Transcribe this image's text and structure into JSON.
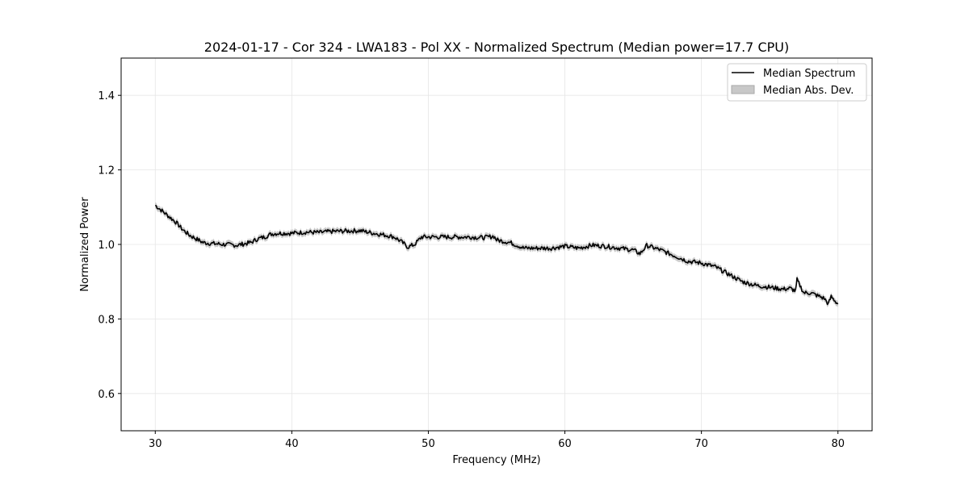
{
  "chart_data": {
    "type": "line",
    "title": "2024-01-17 - Cor 324 - LWA183 - Pol XX - Normalized Spectrum (Median power=17.7 CPU)",
    "xlabel": "Frequency (MHz)",
    "ylabel": "Normalized Power",
    "xlim": [
      27.5,
      82.5
    ],
    "ylim": [
      0.5,
      1.5
    ],
    "xticks": [
      30,
      40,
      50,
      60,
      70,
      80
    ],
    "yticks": [
      0.6,
      0.8,
      1.0,
      1.2,
      1.4
    ],
    "xtick_labels": [
      "30",
      "40",
      "50",
      "60",
      "70",
      "80"
    ],
    "ytick_labels": [
      "0.6",
      "0.8",
      "1.0",
      "1.2",
      "1.4"
    ],
    "grid": true,
    "legend_position": "top-right",
    "colors": {
      "line": "#000000",
      "band": "#a0a0a0",
      "grid": "#e6e6e6"
    },
    "series": [
      {
        "name": "Median Spectrum",
        "kind": "line",
        "x": [
          30,
          30.5,
          31,
          31.5,
          32,
          32.5,
          33,
          33.5,
          34,
          35,
          36,
          37,
          37.5,
          38,
          38.5,
          39,
          40,
          41,
          42,
          43,
          44,
          45,
          46,
          47,
          47.5,
          48,
          48.5,
          49,
          49.5,
          50,
          51,
          52,
          53,
          54,
          54.8,
          55,
          56,
          57,
          58,
          59,
          60,
          61,
          62,
          63,
          64,
          65,
          65.5,
          66,
          67,
          68,
          69,
          70,
          71,
          72,
          72.5,
          73,
          74,
          75,
          76,
          76.5,
          76.9,
          77,
          77.5,
          78,
          79,
          79.3,
          79.5,
          80
        ],
        "y": [
          1.105,
          1.09,
          1.075,
          1.06,
          1.04,
          1.025,
          1.015,
          1.005,
          1.003,
          1.0,
          0.998,
          1.005,
          1.015,
          1.02,
          1.028,
          1.03,
          1.03,
          1.033,
          1.032,
          1.035,
          1.036,
          1.037,
          1.03,
          1.024,
          1.02,
          1.008,
          0.993,
          1.0,
          1.02,
          1.02,
          1.02,
          1.02,
          1.02,
          1.018,
          1.022,
          1.012,
          1.005,
          0.99,
          0.99,
          0.99,
          0.995,
          0.99,
          0.998,
          0.995,
          0.99,
          0.985,
          0.975,
          0.997,
          0.985,
          0.97,
          0.955,
          0.95,
          0.94,
          0.92,
          0.91,
          0.9,
          0.89,
          0.885,
          0.88,
          0.882,
          0.875,
          0.905,
          0.87,
          0.87,
          0.855,
          0.84,
          0.86,
          0.84
        ]
      },
      {
        "name": "Median Abs. Dev.",
        "kind": "band",
        "half_width": 0.008
      }
    ]
  }
}
